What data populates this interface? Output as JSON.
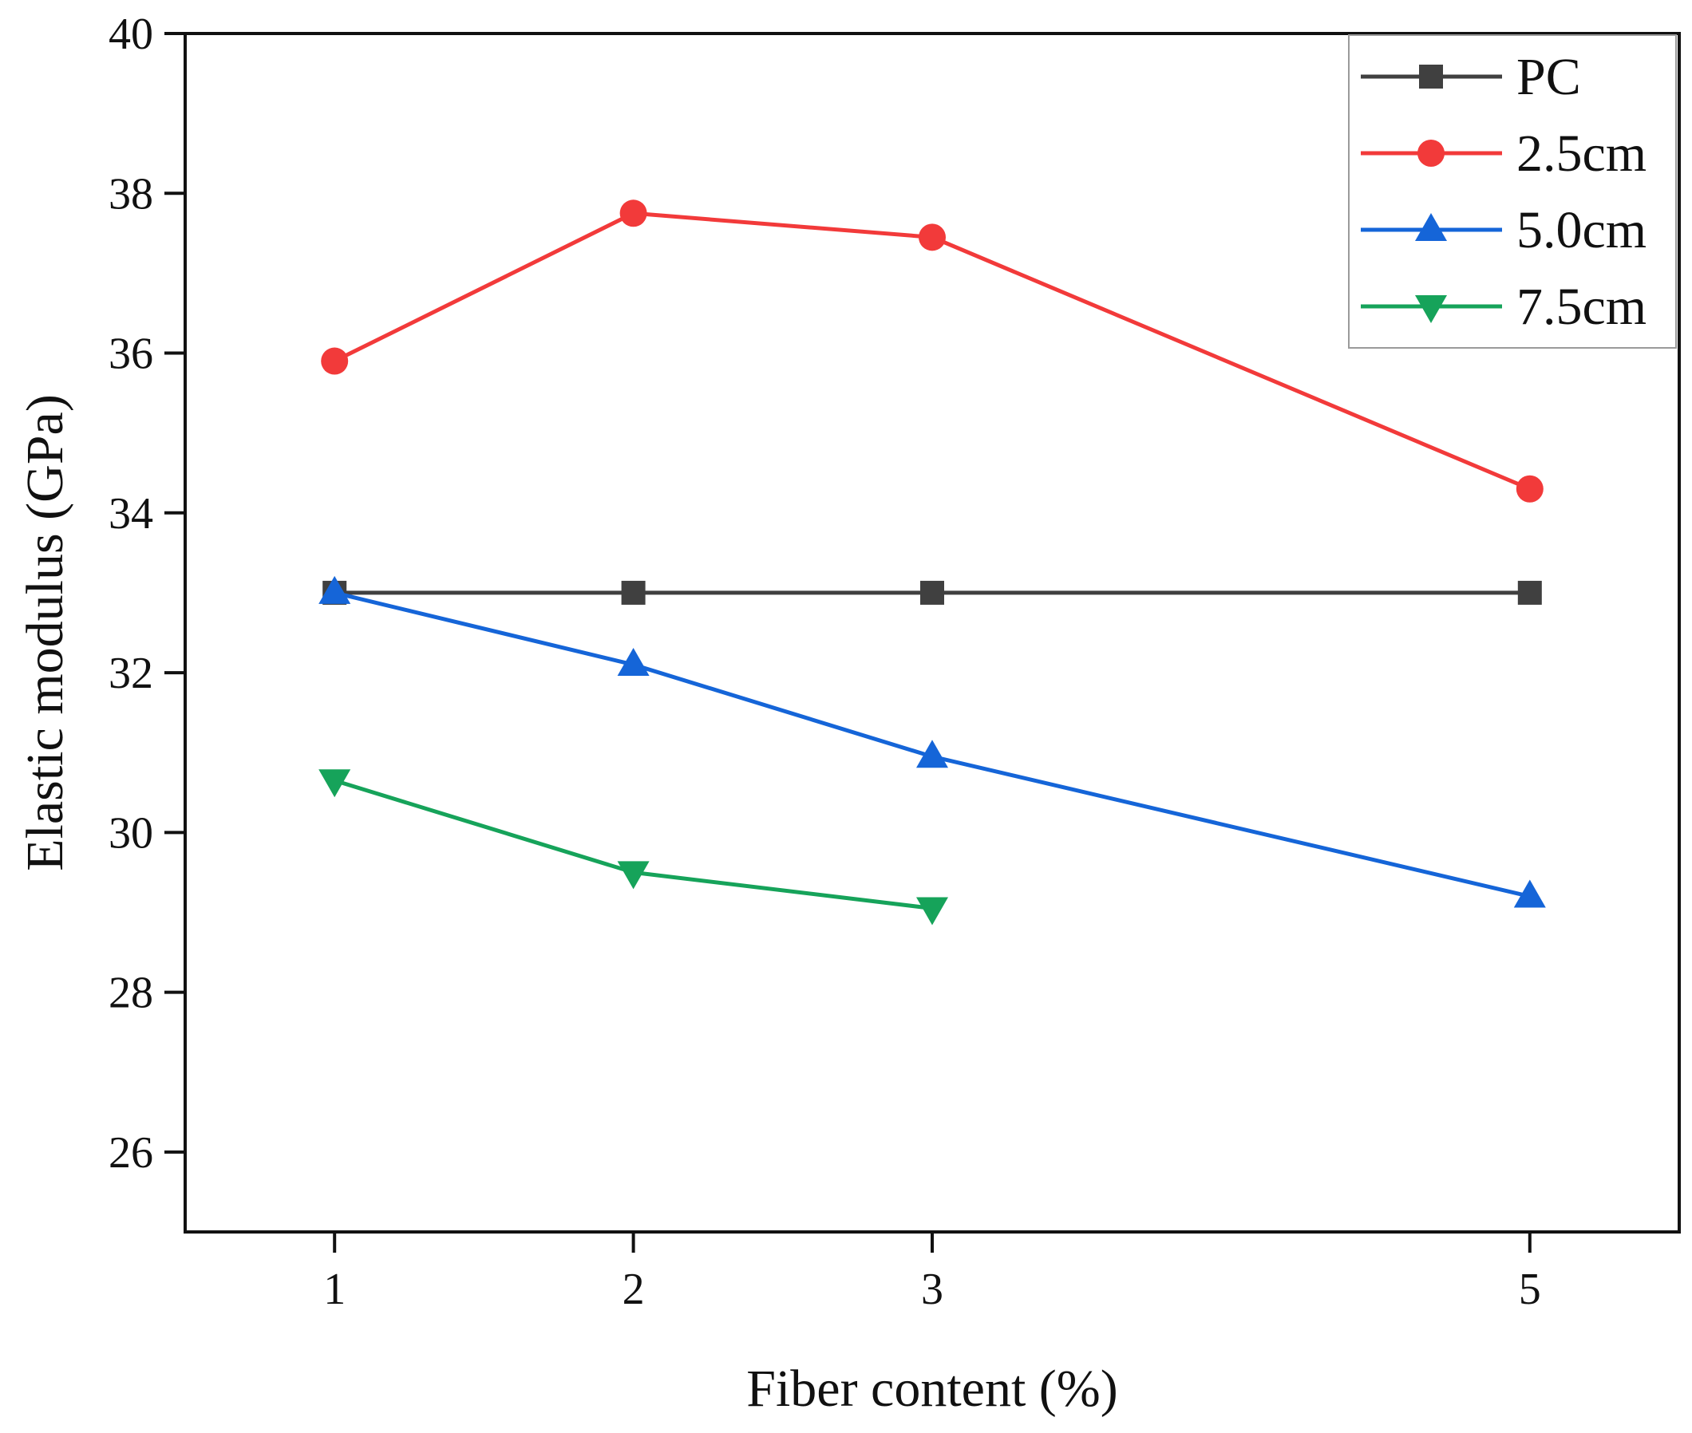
{
  "chart_data": {
    "type": "line",
    "title": "",
    "xlabel": "Fiber content (%)",
    "ylabel": "Elastic modulus (GPa)",
    "x": [
      1,
      2,
      3,
      5
    ],
    "xticks": [
      "1",
      "2",
      "3",
      "5"
    ],
    "xlim": [
      0.5,
      5.5
    ],
    "ylim": [
      25,
      40
    ],
    "yticks": [
      "26",
      "28",
      "30",
      "32",
      "34",
      "36",
      "38",
      "40"
    ],
    "grid": false,
    "legend_position": "top-right",
    "series": [
      {
        "name": "PC",
        "color": "#404040",
        "marker": "square",
        "values": [
          33.0,
          33.0,
          33.0,
          33.0
        ]
      },
      {
        "name": "2.5cm",
        "color": "#f23a3a",
        "marker": "circle",
        "values": [
          35.9,
          37.75,
          37.45,
          34.3
        ]
      },
      {
        "name": "5.0cm",
        "color": "#1565d8",
        "marker": "triangle-up",
        "values": [
          33.0,
          32.1,
          30.95,
          29.2
        ]
      },
      {
        "name": "7.5cm",
        "color": "#16a35a",
        "marker": "triangle-down",
        "values": [
          30.65,
          29.5,
          29.05,
          null
        ]
      }
    ]
  }
}
